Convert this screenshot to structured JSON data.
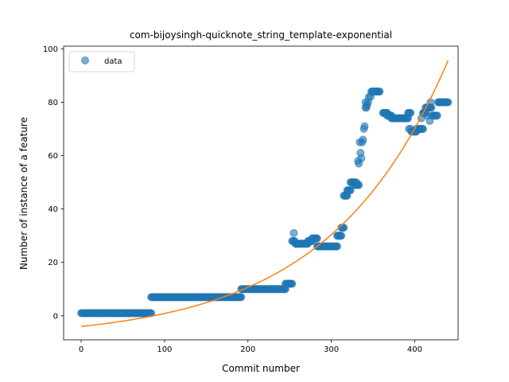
{
  "chart_data": {
    "type": "scatter",
    "title": "com-bijoysingh-quicknote_string_template-exponential",
    "xlabel": "Commit number",
    "ylabel": "Number of instance of a feature",
    "xlim": [
      -21,
      452
    ],
    "ylim": [
      -9,
      101
    ],
    "xticks": [
      0,
      100,
      200,
      300,
      400
    ],
    "yticks": [
      0,
      20,
      40,
      60,
      80,
      100
    ],
    "xtick_labels": [
      "0",
      "100",
      "200",
      "300",
      "400"
    ],
    "ytick_labels": [
      "0",
      "20",
      "40",
      "60",
      "80",
      "100"
    ],
    "grid": false,
    "legend": {
      "placement": "upper-left",
      "entries": [
        "data"
      ]
    },
    "colors": {
      "data": "#1f77b4",
      "fit": "#ff7f0e"
    },
    "series": [
      {
        "name": "data",
        "kind": "scatter",
        "segments": [
          {
            "x_start": 0,
            "x_end": 84,
            "y": 1
          },
          {
            "x_start": 84,
            "x_end": 192,
            "y": 7
          },
          {
            "x_start": 192,
            "x_end": 245,
            "y": 10
          },
          {
            "x_start": 245,
            "x_end": 253,
            "y": 12
          },
          {
            "x_start": 253,
            "x_end": 256,
            "y": 28
          },
          {
            "x_start": 257,
            "x_end": 272,
            "y": 27
          },
          {
            "x_start": 272,
            "x_end": 277,
            "y": 28
          },
          {
            "x_start": 277,
            "x_end": 283,
            "y": 29
          },
          {
            "x_start": 283,
            "x_end": 307,
            "y": 26
          },
          {
            "x_start": 307,
            "x_end": 312,
            "y": 30
          },
          {
            "x_start": 312,
            "x_end": 315,
            "y": 33
          },
          {
            "x_start": 315,
            "x_end": 319,
            "y": 45
          },
          {
            "x_start": 319,
            "x_end": 323,
            "y": 47
          },
          {
            "x_start": 323,
            "x_end": 328,
            "y": 50
          },
          {
            "x_start": 328,
            "x_end": 333,
            "y": 49
          },
          {
            "x_start": 348,
            "x_end": 358,
            "y": 84
          },
          {
            "x_start": 362,
            "x_end": 367,
            "y": 76
          },
          {
            "x_start": 367,
            "x_end": 372,
            "y": 75
          },
          {
            "x_start": 372,
            "x_end": 392,
            "y": 74
          },
          {
            "x_start": 392,
            "x_end": 395,
            "y": 76
          },
          {
            "x_start": 396,
            "x_end": 402,
            "y": 69
          },
          {
            "x_start": 402,
            "x_end": 410,
            "y": 70
          },
          {
            "x_start": 410,
            "x_end": 413,
            "y": 76
          },
          {
            "x_start": 413,
            "x_end": 419,
            "y": 78
          },
          {
            "x_start": 421,
            "x_end": 427,
            "y": 75
          },
          {
            "x_start": 428,
            "x_end": 440,
            "y": 80
          }
        ],
        "points": [
          [
            255,
            31
          ],
          [
            258,
            27
          ],
          [
            330,
            50
          ],
          [
            332,
            58
          ],
          [
            333,
            57
          ],
          [
            334,
            65
          ],
          [
            335,
            61
          ],
          [
            336,
            59
          ],
          [
            337,
            65
          ],
          [
            338,
            66
          ],
          [
            339,
            70
          ],
          [
            340,
            71
          ],
          [
            341,
            78
          ],
          [
            341,
            80
          ],
          [
            342,
            78
          ],
          [
            343,
            79
          ],
          [
            344,
            80
          ],
          [
            345,
            82
          ],
          [
            347,
            82
          ],
          [
            393,
            70
          ],
          [
            395,
            70
          ],
          [
            408,
            74
          ],
          [
            411,
            76
          ],
          [
            415,
            75
          ],
          [
            418,
            73
          ],
          [
            419,
            80
          ],
          [
            420,
            78
          ]
        ]
      },
      {
        "name": "",
        "kind": "line",
        "model": {
          "a": 4.8,
          "b": 0.007,
          "c": -8.8
        },
        "x_range": [
          0,
          440
        ]
      }
    ]
  }
}
